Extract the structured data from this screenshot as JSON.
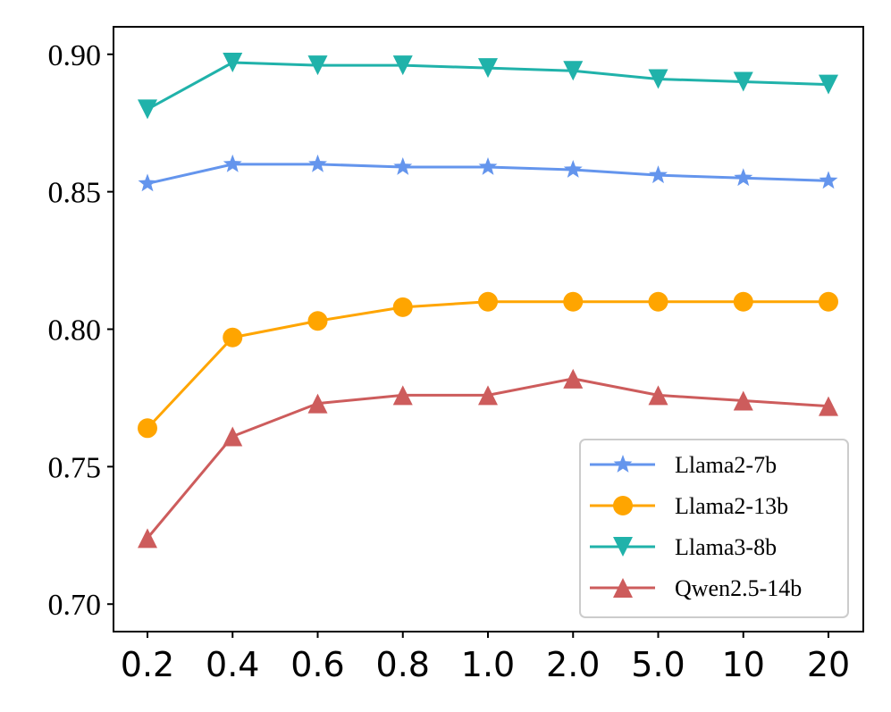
{
  "chart_data": {
    "type": "line",
    "title": "",
    "xlabel": "",
    "ylabel": "",
    "categories": [
      "0.2",
      "0.4",
      "0.6",
      "0.8",
      "1.0",
      "2.0",
      "5.0",
      "10",
      "20"
    ],
    "ylim": [
      0.69,
      0.91
    ],
    "yticks": [
      0.7,
      0.75,
      0.8,
      0.85,
      0.9
    ],
    "ytick_labels": [
      "0.70",
      "0.75",
      "0.80",
      "0.85",
      "0.90"
    ],
    "grid": false,
    "legend_position": "bottom-right",
    "series": [
      {
        "name": "Llama2-7b",
        "color": "#6495ED",
        "marker": "star",
        "values": [
          0.853,
          0.86,
          0.86,
          0.859,
          0.859,
          0.858,
          0.856,
          0.855,
          0.854
        ]
      },
      {
        "name": "Llama2-13b",
        "color": "#FFA500",
        "marker": "circle",
        "values": [
          0.764,
          0.797,
          0.803,
          0.808,
          0.81,
          0.81,
          0.81,
          0.81,
          0.81
        ]
      },
      {
        "name": "Llama3-8b",
        "color": "#20B2AA",
        "marker": "triangle-down",
        "values": [
          0.88,
          0.897,
          0.896,
          0.896,
          0.895,
          0.894,
          0.891,
          0.89,
          0.889
        ]
      },
      {
        "name": "Qwen2.5-14b",
        "color": "#CD5C5C",
        "marker": "triangle-up",
        "values": [
          0.724,
          0.761,
          0.773,
          0.776,
          0.776,
          0.782,
          0.776,
          0.774,
          0.772
        ]
      }
    ]
  }
}
